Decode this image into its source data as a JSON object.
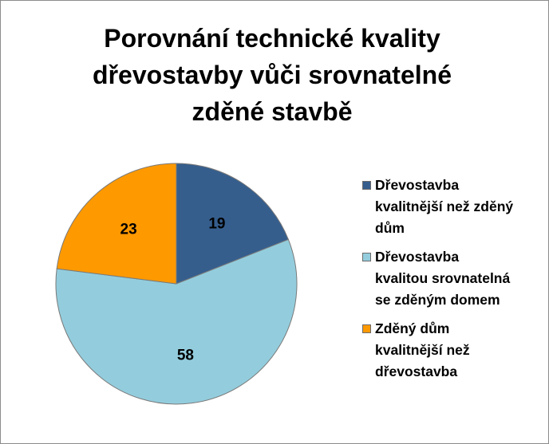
{
  "chart_data": {
    "type": "pie",
    "title_lines": [
      "Porovnání technické kvality",
      "dřevostavby vůči srovnatelné",
      "zděné stavbě"
    ],
    "title": "Porovnání technické kvality dřevostavby vůči srovnatelné zděné stavbě",
    "start_angle_deg": 0,
    "direction": "clockwise",
    "legend_position": "right",
    "slices": [
      {
        "label_lines": [
          "Dřevostavba",
          "kvalitnější než zděný",
          "dům"
        ],
        "label": "Dřevostavba kvalitnější než zděný dům",
        "value": 19,
        "value_label": "19",
        "color": "#355e8d"
      },
      {
        "label_lines": [
          "Dřevostavba",
          "kvalitou srovnatelná",
          "se zděným domem"
        ],
        "label": "Dřevostavba kvalitou srovnatelná se zděným domem",
        "value": 58,
        "value_label": "58",
        "color": "#93cddd"
      },
      {
        "label_lines": [
          "Zděný dům",
          "kvalitnější než",
          "dřevostavba"
        ],
        "label": "Zděný dům kvalitnější než dřevostavba",
        "value": 23,
        "value_label": "23",
        "color": "#ff9900"
      }
    ]
  }
}
